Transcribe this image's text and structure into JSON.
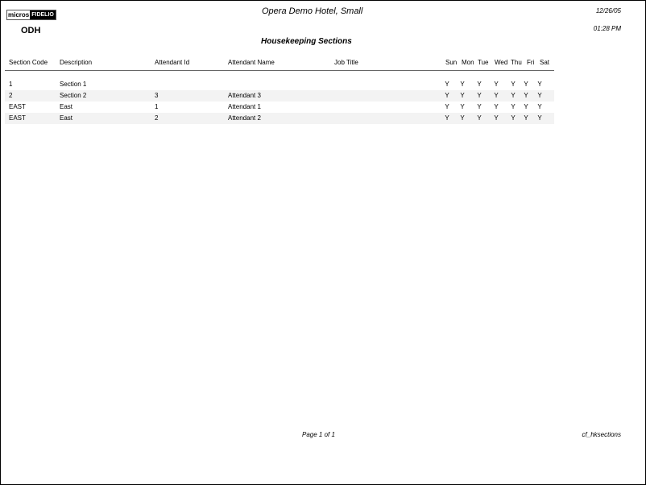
{
  "header": {
    "logo_left": "micros",
    "logo_right": "FIDELIO",
    "property_code": "ODH",
    "hotel_name": "Opera Demo Hotel, Small",
    "report_title": "Housekeeping Sections",
    "date": "12/26/05",
    "time": "01:28 PM"
  },
  "columns": [
    "Section Code",
    "Description",
    "Attendant Id",
    "Attendant Name",
    "Job Title",
    "Sun",
    "Mon",
    "Tue",
    "Wed",
    "Thu",
    "Fri",
    "Sat"
  ],
  "rows": [
    {
      "code": "1",
      "description": "Section 1",
      "attendant_id": "",
      "attendant_name": "",
      "job_title": "",
      "days": [
        "Y",
        "Y",
        "Y",
        "Y",
        "Y",
        "Y",
        "Y"
      ]
    },
    {
      "code": "2",
      "description": "Section 2",
      "attendant_id": "3",
      "attendant_name": "Attendant 3",
      "job_title": "",
      "days": [
        "Y",
        "Y",
        "Y",
        "Y",
        "Y",
        "Y",
        "Y"
      ]
    },
    {
      "code": "EAST",
      "description": "East",
      "attendant_id": "1",
      "attendant_name": "Attendant 1",
      "job_title": "",
      "days": [
        "Y",
        "Y",
        "Y",
        "Y",
        "Y",
        "Y",
        "Y"
      ]
    },
    {
      "code": "EAST",
      "description": "East",
      "attendant_id": "2",
      "attendant_name": "Attendant 2",
      "job_title": "",
      "days": [
        "Y",
        "Y",
        "Y",
        "Y",
        "Y",
        "Y",
        "Y"
      ]
    }
  ],
  "footer": {
    "page": "Page 1 of 1",
    "report_name": "cf_hksections"
  }
}
